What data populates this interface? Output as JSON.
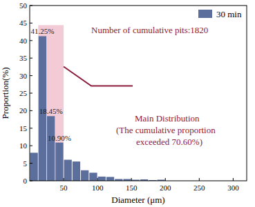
{
  "chart_data": {
    "type": "histogram",
    "x_label": "Diameter (μm)",
    "y_label": "Proportion(%)",
    "bins": [
      0,
      12.5,
      25,
      37.5,
      50,
      62.5,
      75,
      87.5,
      100,
      112.5,
      125,
      137.5,
      150,
      162.5,
      175,
      187.5,
      200
    ],
    "series": [
      {
        "name": "30 min",
        "color": "#5b6e9c",
        "values": [
          8,
          41.25,
          18.45,
          10.9,
          6,
          5.5,
          3,
          2.3,
          1.2,
          1.1,
          0.5,
          0.5,
          0.3,
          0.4,
          0.2,
          0.3
        ],
        "value_labels": [
          null,
          "41.25%",
          "18.45%",
          "10.90%",
          null,
          null,
          null,
          null,
          null,
          null,
          null,
          null,
          null,
          null,
          null,
          null
        ]
      }
    ],
    "data_labels": true,
    "xlim": [
      0,
      320
    ],
    "xticks": [
      50,
      100,
      150,
      200,
      250,
      300
    ],
    "ylim": [
      0,
      50
    ],
    "yticks": [
      0,
      5,
      10,
      15,
      20,
      25,
      30,
      35,
      40,
      45,
      50
    ],
    "legend": "upper right",
    "annotations": [
      "Number of cumulative pits:1820",
      "Main Distribution",
      "(The cumulative proportion",
      "exceeded 70.60%)"
    ]
  }
}
